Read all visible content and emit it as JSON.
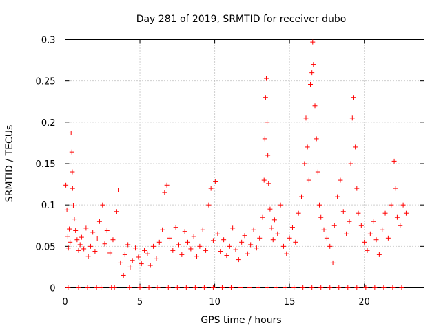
{
  "chart_data": {
    "type": "scatter",
    "title": "Day 281 of 2019, SRMTID for receiver dubo",
    "xlabel": "GPS time / hours",
    "ylabel": "SRMTID / TECUs",
    "xlim": [
      0,
      24
    ],
    "ylim": [
      0,
      0.3
    ],
    "xticks": [
      0,
      5,
      10,
      15,
      20
    ],
    "xtick_labels": [
      "0",
      "5",
      "10",
      "15",
      "20"
    ],
    "yticks": [
      0,
      0.05,
      0.1,
      0.15,
      0.2,
      0.25,
      0.3
    ],
    "ytick_labels": [
      "0",
      "0.05",
      "0.1",
      "0.15",
      "0.2",
      "0.25",
      "0.3"
    ],
    "grid": true,
    "marker": "+",
    "marker_color": "#ff0000",
    "series": [
      {
        "name": "SRMTID",
        "points": [
          [
            0.05,
            0.124
          ],
          [
            0.12,
            0.094
          ],
          [
            0.18,
            0.062
          ],
          [
            0.22,
            0.048
          ],
          [
            0.28,
            0.071
          ],
          [
            0.33,
            0.055
          ],
          [
            0.4,
            0.187
          ],
          [
            0.45,
            0.164
          ],
          [
            0.48,
            0.14
          ],
          [
            0.5,
            0.12
          ],
          [
            0.55,
            0.099
          ],
          [
            0.62,
            0.083
          ],
          [
            0.7,
            0.069
          ],
          [
            0.8,
            0.058
          ],
          [
            0.9,
            0.045
          ],
          [
            1.0,
            0.052
          ],
          [
            1.1,
            0.061
          ],
          [
            1.25,
            0.047
          ],
          [
            1.4,
            0.072
          ],
          [
            1.55,
            0.038
          ],
          [
            1.7,
            0.05
          ],
          [
            1.85,
            0.067
          ],
          [
            2.0,
            0.044
          ],
          [
            2.15,
            0.059
          ],
          [
            2.3,
            0.08
          ],
          [
            2.5,
            0.1
          ],
          [
            2.65,
            0.053
          ],
          [
            2.8,
            0.069
          ],
          [
            3.0,
            0.042
          ],
          [
            3.2,
            0.058
          ],
          [
            3.45,
            0.092
          ],
          [
            3.55,
            0.118
          ],
          [
            3.7,
            0.03
          ],
          [
            3.9,
            0.015
          ],
          [
            4.0,
            0.04
          ],
          [
            4.2,
            0.052
          ],
          [
            4.35,
            0.025
          ],
          [
            4.5,
            0.033
          ],
          [
            4.7,
            0.048
          ],
          [
            4.9,
            0.037
          ],
          [
            5.1,
            0.029
          ],
          [
            5.3,
            0.045
          ],
          [
            5.5,
            0.041
          ],
          [
            5.7,
            0.027
          ],
          [
            5.9,
            0.05
          ],
          [
            6.1,
            0.035
          ],
          [
            6.3,
            0.055
          ],
          [
            6.5,
            0.07
          ],
          [
            6.65,
            0.115
          ],
          [
            6.8,
            0.124
          ],
          [
            7.0,
            0.06
          ],
          [
            7.2,
            0.045
          ],
          [
            7.4,
            0.073
          ],
          [
            7.6,
            0.052
          ],
          [
            7.8,
            0.04
          ],
          [
            8.0,
            0.068
          ],
          [
            8.2,
            0.055
          ],
          [
            8.4,
            0.047
          ],
          [
            8.6,
            0.062
          ],
          [
            8.8,
            0.038
          ],
          [
            9.0,
            0.05
          ],
          [
            9.2,
            0.07
          ],
          [
            9.4,
            0.045
          ],
          [
            9.6,
            0.1
          ],
          [
            9.75,
            0.12
          ],
          [
            9.9,
            0.057
          ],
          [
            10.05,
            0.128
          ],
          [
            10.2,
            0.065
          ],
          [
            10.4,
            0.044
          ],
          [
            10.6,
            0.058
          ],
          [
            10.8,
            0.039
          ],
          [
            11.0,
            0.05
          ],
          [
            11.2,
            0.072
          ],
          [
            11.4,
            0.046
          ],
          [
            11.6,
            0.034
          ],
          [
            11.8,
            0.055
          ],
          [
            12.0,
            0.063
          ],
          [
            12.2,
            0.041
          ],
          [
            12.4,
            0.052
          ],
          [
            12.6,
            0.07
          ],
          [
            12.8,
            0.048
          ],
          [
            13.0,
            0.06
          ],
          [
            13.2,
            0.085
          ],
          [
            13.3,
            0.13
          ],
          [
            13.35,
            0.18
          ],
          [
            13.4,
            0.23
          ],
          [
            13.45,
            0.253
          ],
          [
            13.5,
            0.2
          ],
          [
            13.55,
            0.16
          ],
          [
            13.6,
            0.126
          ],
          [
            13.7,
            0.095
          ],
          [
            13.8,
            0.072
          ],
          [
            13.9,
            0.058
          ],
          [
            14.0,
            0.082
          ],
          [
            14.2,
            0.065
          ],
          [
            14.4,
            0.1
          ],
          [
            14.6,
            0.05
          ],
          [
            14.8,
            0.041
          ],
          [
            15.0,
            0.06
          ],
          [
            15.2,
            0.073
          ],
          [
            15.4,
            0.055
          ],
          [
            15.6,
            0.09
          ],
          [
            15.8,
            0.11
          ],
          [
            16.0,
            0.15
          ],
          [
            16.1,
            0.205
          ],
          [
            16.2,
            0.17
          ],
          [
            16.3,
            0.13
          ],
          [
            16.4,
            0.246
          ],
          [
            16.5,
            0.26
          ],
          [
            16.55,
            0.297
          ],
          [
            16.6,
            0.27
          ],
          [
            16.7,
            0.22
          ],
          [
            16.8,
            0.18
          ],
          [
            16.9,
            0.14
          ],
          [
            17.0,
            0.1
          ],
          [
            17.1,
            0.085
          ],
          [
            17.3,
            0.07
          ],
          [
            17.5,
            0.06
          ],
          [
            17.7,
            0.05
          ],
          [
            17.9,
            0.03
          ],
          [
            18.0,
            0.075
          ],
          [
            18.2,
            0.11
          ],
          [
            18.4,
            0.13
          ],
          [
            18.6,
            0.092
          ],
          [
            18.8,
            0.065
          ],
          [
            19.0,
            0.08
          ],
          [
            19.1,
            0.15
          ],
          [
            19.2,
            0.205
          ],
          [
            19.3,
            0.23
          ],
          [
            19.4,
            0.17
          ],
          [
            19.5,
            0.12
          ],
          [
            19.6,
            0.09
          ],
          [
            19.8,
            0.075
          ],
          [
            20.0,
            0.055
          ],
          [
            20.2,
            0.045
          ],
          [
            20.4,
            0.065
          ],
          [
            20.6,
            0.08
          ],
          [
            20.8,
            0.058
          ],
          [
            21.0,
            0.04
          ],
          [
            21.2,
            0.07
          ],
          [
            21.4,
            0.09
          ],
          [
            21.6,
            0.06
          ],
          [
            21.8,
            0.1
          ],
          [
            22.0,
            0.153
          ],
          [
            22.1,
            0.12
          ],
          [
            22.2,
            0.085
          ],
          [
            22.4,
            0.075
          ],
          [
            22.6,
            0.1
          ],
          [
            22.8,
            0.09
          ]
        ],
        "zero_points_x": [
          0.2,
          0.9,
          1.5,
          2.1,
          2.4,
          3.1,
          3.3,
          4.3,
          5.0,
          5.6,
          6.2,
          6.9,
          7.5,
          8.1,
          8.7,
          9.3,
          9.9,
          10.5,
          11.1,
          11.7,
          12.3,
          12.9,
          13.5,
          14.1,
          14.7,
          15.3,
          15.9,
          16.5,
          17.1,
          17.7,
          18.3,
          18.9,
          19.5,
          20.1,
          20.7,
          21.3,
          21.9,
          22.5
        ]
      }
    ]
  }
}
